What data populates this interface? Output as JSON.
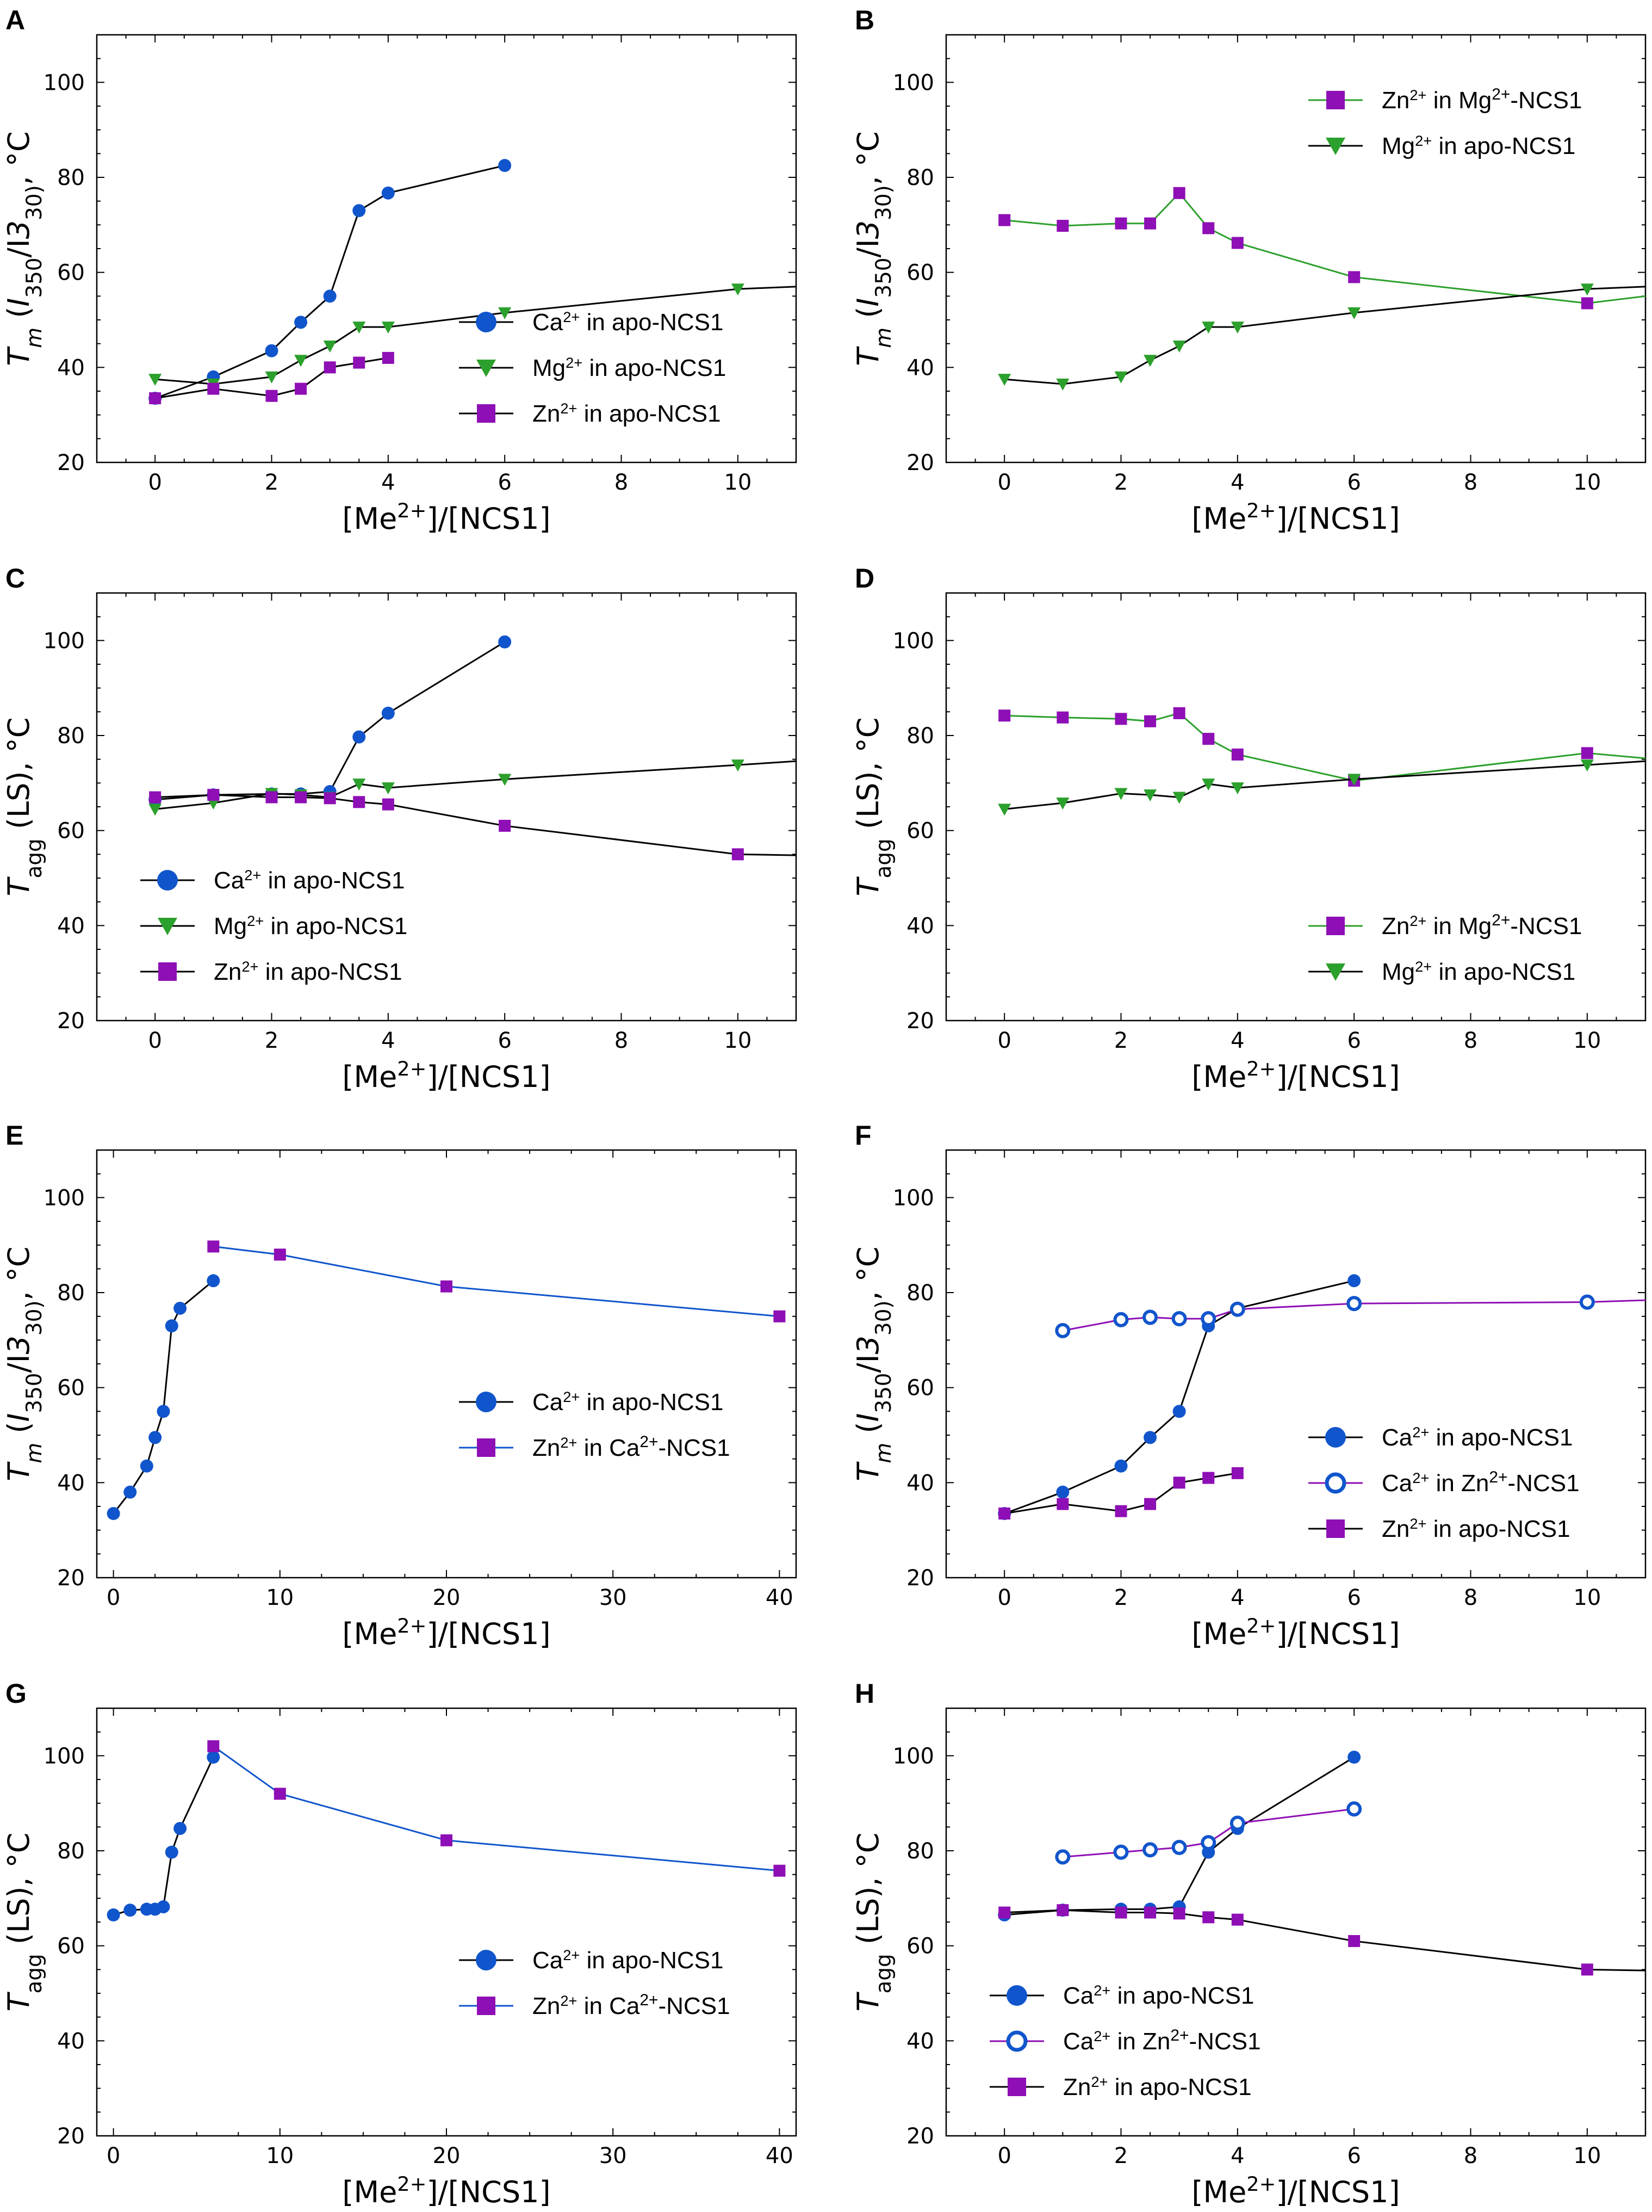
{
  "chart_data": [
    {
      "panel": "A",
      "type": "line",
      "xlabel": "[Me2+]/[NCS1]",
      "ylabel": "Tm (I350/I330), °C",
      "ylabel_kind": "tm",
      "xlim": [
        -1,
        11
      ],
      "ylim": [
        20,
        110
      ],
      "xticks": [
        0,
        2,
        4,
        6,
        8,
        10
      ],
      "yticks": [
        20,
        40,
        60,
        80,
        100
      ],
      "legend_position": "lower-right",
      "series": [
        {
          "ion": "Ca",
          "state": "in apo-NCS1",
          "marker": "circle",
          "markerColor": "#1155cc",
          "lineColor": "#000000",
          "x": [
            0,
            1,
            2,
            2.5,
            3,
            3.5,
            4,
            6
          ],
          "y": [
            33.5,
            38,
            43.5,
            49.5,
            55,
            73,
            76.7,
            82.5
          ]
        },
        {
          "ion": "Mg",
          "state": "in apo-NCS1",
          "marker": "triangle",
          "markerColor": "#2ca02c",
          "lineColor": "#000000",
          "x": [
            0,
            1,
            2,
            2.5,
            3,
            3.5,
            4,
            6,
            10,
            11
          ],
          "y": [
            37.5,
            36.5,
            38,
            41.5,
            44.5,
            48.5,
            48.5,
            51.5,
            56.5,
            57
          ],
          "marker_points": [
            0,
            1,
            2,
            2.5,
            3,
            3.5,
            4,
            6,
            10
          ]
        },
        {
          "ion": "Zn",
          "state": "in apo-NCS1",
          "marker": "square",
          "markerColor": "#8e0fb5",
          "lineColor": "#000000",
          "x": [
            0,
            1,
            2,
            2.5,
            3,
            3.5,
            4
          ],
          "y": [
            33.5,
            35.5,
            34,
            35.5,
            40,
            41,
            42
          ]
        }
      ]
    },
    {
      "panel": "B",
      "type": "line",
      "xlabel": "[Me2+]/[NCS1]",
      "ylabel": "Tm (I350/I330), °C",
      "ylabel_kind": "tm",
      "xlim": [
        -1,
        11
      ],
      "ylim": [
        20,
        110
      ],
      "xticks": [
        0,
        2,
        4,
        6,
        8,
        10
      ],
      "yticks": [
        20,
        40,
        60,
        80,
        100
      ],
      "legend_position": "upper-right",
      "series": [
        {
          "ion": "Zn",
          "state": "in Mg2+-NCS1",
          "marker": "square",
          "markerColor": "#8e0fb5",
          "lineColor": "#2ca02c",
          "x": [
            0,
            1,
            2,
            2.5,
            3,
            3.5,
            4,
            6,
            10,
            11
          ],
          "y": [
            71,
            69.8,
            70.3,
            70.3,
            76.7,
            69.3,
            66.2,
            59,
            53.5,
            55
          ],
          "marker_points": [
            0,
            1,
            2,
            2.5,
            3,
            3.5,
            4,
            6,
            10
          ]
        },
        {
          "ion": "Mg",
          "state": "in apo-NCS1",
          "marker": "triangle",
          "markerColor": "#2ca02c",
          "lineColor": "#000000",
          "x": [
            0,
            1,
            2,
            2.5,
            3,
            3.5,
            4,
            6,
            10,
            11
          ],
          "y": [
            37.5,
            36.5,
            38,
            41.5,
            44.5,
            48.5,
            48.5,
            51.5,
            56.5,
            57
          ],
          "marker_points": [
            0,
            1,
            2,
            2.5,
            3,
            3.5,
            4,
            6,
            10
          ]
        }
      ]
    },
    {
      "panel": "C",
      "type": "line",
      "xlabel": "[Me2+]/[NCS1]",
      "ylabel": "Tagg (LS), °C",
      "ylabel_kind": "tagg",
      "xlim": [
        -1,
        11
      ],
      "ylim": [
        20,
        110
      ],
      "xticks": [
        0,
        2,
        4,
        6,
        8,
        10
      ],
      "yticks": [
        20,
        40,
        60,
        80,
        100
      ],
      "legend_position": "lower-left",
      "series": [
        {
          "ion": "Ca",
          "state": "in apo-NCS1",
          "marker": "circle",
          "markerColor": "#1155cc",
          "lineColor": "#000000",
          "x": [
            0,
            1,
            2,
            2.5,
            3,
            3.5,
            4,
            6
          ],
          "y": [
            66.5,
            67.5,
            67.7,
            67.7,
            68.2,
            79.7,
            84.7,
            99.7
          ]
        },
        {
          "ion": "Mg",
          "state": "in apo-NCS1",
          "marker": "triangle",
          "markerColor": "#2ca02c",
          "lineColor": "#000000",
          "x": [
            0,
            1,
            2,
            2.5,
            3,
            3.5,
            4,
            6,
            10,
            11
          ],
          "y": [
            64.5,
            65.8,
            67.8,
            67.5,
            67,
            69.8,
            69,
            70.8,
            73.8,
            74.6
          ],
          "marker_points": [
            0,
            1,
            2,
            2.5,
            3,
            3.5,
            4,
            6,
            10
          ]
        },
        {
          "ion": "Zn",
          "state": "in apo-NCS1",
          "marker": "square",
          "markerColor": "#8e0fb5",
          "lineColor": "#000000",
          "x": [
            0,
            1,
            2,
            2.5,
            3,
            3.5,
            4,
            6,
            10,
            11
          ],
          "y": [
            67,
            67.5,
            67,
            67,
            66.8,
            66,
            65.5,
            61,
            55,
            54.8
          ],
          "marker_points": [
            0,
            1,
            2,
            2.5,
            3,
            3.5,
            4,
            6,
            10
          ]
        }
      ]
    },
    {
      "panel": "D",
      "type": "line",
      "xlabel": "[Me2+]/[NCS1]",
      "ylabel": "Tagg (LS), °C",
      "ylabel_kind": "tagg",
      "xlim": [
        -1,
        11
      ],
      "ylim": [
        20,
        110
      ],
      "xticks": [
        0,
        2,
        4,
        6,
        8,
        10
      ],
      "yticks": [
        20,
        40,
        60,
        80,
        100
      ],
      "legend_position": "lower-right",
      "series": [
        {
          "ion": "Zn",
          "state": "in Mg2+-NCS1",
          "marker": "square",
          "markerColor": "#8e0fb5",
          "lineColor": "#2ca02c",
          "x": [
            0,
            1,
            2,
            2.5,
            3,
            3.5,
            4,
            6,
            10,
            11
          ],
          "y": [
            84.2,
            83.8,
            83.5,
            83,
            84.7,
            79.3,
            76,
            70.5,
            76.3,
            75.2
          ],
          "marker_points": [
            0,
            1,
            2,
            2.5,
            3,
            3.5,
            4,
            6,
            10
          ]
        },
        {
          "ion": "Mg",
          "state": "in apo-NCS1",
          "marker": "triangle",
          "markerColor": "#2ca02c",
          "lineColor": "#000000",
          "x": [
            0,
            1,
            2,
            2.5,
            3,
            3.5,
            4,
            6,
            10,
            11
          ],
          "y": [
            64.5,
            65.8,
            67.8,
            67.5,
            67,
            69.8,
            69,
            70.8,
            73.8,
            74.6
          ],
          "marker_points": [
            0,
            1,
            2,
            2.5,
            3,
            3.5,
            4,
            6,
            10
          ]
        }
      ]
    },
    {
      "panel": "E",
      "type": "line",
      "xlabel": "[Me2+]/[NCS1]",
      "ylabel": "Tm (I350/I330), °C",
      "ylabel_kind": "tm",
      "xlim": [
        -1,
        41
      ],
      "ylim": [
        20,
        110
      ],
      "xticks": [
        0,
        10,
        20,
        30,
        40
      ],
      "yticks": [
        20,
        40,
        60,
        80,
        100
      ],
      "legend_position": "center-right",
      "series": [
        {
          "ion": "Ca",
          "state": "in apo-NCS1",
          "marker": "circle",
          "markerColor": "#1155cc",
          "lineColor": "#000000",
          "x": [
            0,
            1,
            2,
            2.5,
            3,
            3.5,
            4,
            6
          ],
          "y": [
            33.5,
            38,
            43.5,
            49.5,
            55,
            73,
            76.7,
            82.5
          ]
        },
        {
          "ion": "Zn",
          "state": "in Ca2+-NCS1",
          "marker": "square",
          "markerColor": "#8e0fb5",
          "lineColor": "#1155cc",
          "x": [
            6,
            10,
            20,
            40
          ],
          "y": [
            89.7,
            88,
            81.3,
            75
          ]
        }
      ]
    },
    {
      "panel": "F",
      "type": "line",
      "xlabel": "[Me2+]/[NCS1]",
      "ylabel": "Tm (I350/I330), °C",
      "ylabel_kind": "tm",
      "xlim": [
        -1,
        11
      ],
      "ylim": [
        20,
        110
      ],
      "xticks": [
        0,
        2,
        4,
        6,
        8,
        10
      ],
      "yticks": [
        20,
        40,
        60,
        80,
        100
      ],
      "legend_position": "lower-right",
      "series": [
        {
          "ion": "Ca",
          "state": "in apo-NCS1",
          "marker": "circle",
          "markerColor": "#1155cc",
          "lineColor": "#000000",
          "x": [
            0,
            1,
            2,
            2.5,
            3,
            3.5,
            4,
            6
          ],
          "y": [
            33.5,
            38,
            43.5,
            49.5,
            55,
            73,
            76.7,
            82.5
          ]
        },
        {
          "ion": "Ca",
          "state": "in Zn2+-NCS1",
          "marker": "open-circle",
          "markerColor": "#1155cc",
          "lineColor": "#8e0fb5",
          "x": [
            1,
            2,
            2.5,
            3,
            3.5,
            4,
            6,
            10,
            11
          ],
          "y": [
            72,
            74.3,
            74.8,
            74.5,
            74.5,
            76.5,
            77.7,
            78,
            78.4
          ],
          "marker_points": [
            1,
            2,
            2.5,
            3,
            3.5,
            4,
            6,
            10
          ]
        },
        {
          "ion": "Zn",
          "state": "in apo-NCS1",
          "marker": "square",
          "markerColor": "#8e0fb5",
          "lineColor": "#000000",
          "x": [
            0,
            1,
            2,
            2.5,
            3,
            3.5,
            4
          ],
          "y": [
            33.5,
            35.5,
            34,
            35.5,
            40,
            41,
            42
          ]
        }
      ]
    },
    {
      "panel": "G",
      "type": "line",
      "xlabel": "[Me2+]/[NCS1]",
      "ylabel": "Tagg (LS), °C",
      "ylabel_kind": "tagg",
      "xlim": [
        -1,
        41
      ],
      "ylim": [
        20,
        110
      ],
      "xticks": [
        0,
        10,
        20,
        30,
        40
      ],
      "yticks": [
        20,
        40,
        60,
        80,
        100
      ],
      "legend_position": "center-right",
      "series": [
        {
          "ion": "Ca",
          "state": "in apo-NCS1",
          "marker": "circle",
          "markerColor": "#1155cc",
          "lineColor": "#000000",
          "x": [
            0,
            1,
            2,
            2.5,
            3,
            3.5,
            4,
            6
          ],
          "y": [
            66.5,
            67.5,
            67.7,
            67.7,
            68.2,
            79.7,
            84.7,
            99.7
          ]
        },
        {
          "ion": "Zn",
          "state": "in Ca2+-NCS1",
          "marker": "square",
          "markerColor": "#8e0fb5",
          "lineColor": "#1155cc",
          "x": [
            6,
            10,
            20,
            40
          ],
          "y": [
            102,
            92,
            82.2,
            75.8
          ]
        }
      ]
    },
    {
      "panel": "H",
      "type": "line",
      "xlabel": "[Me2+]/[NCS1]",
      "ylabel": "Tagg (LS), °C",
      "ylabel_kind": "tagg",
      "xlim": [
        -1,
        11
      ],
      "ylim": [
        20,
        110
      ],
      "xticks": [
        0,
        2,
        4,
        6,
        8,
        10
      ],
      "yticks": [
        20,
        40,
        60,
        80,
        100
      ],
      "legend_position": "lower-left",
      "series": [
        {
          "ion": "Ca",
          "state": "in apo-NCS1",
          "marker": "circle",
          "markerColor": "#1155cc",
          "lineColor": "#000000",
          "x": [
            0,
            1,
            2,
            2.5,
            3,
            3.5,
            4,
            6
          ],
          "y": [
            66.5,
            67.5,
            67.7,
            67.7,
            68.2,
            79.7,
            84.7,
            99.7
          ]
        },
        {
          "ion": "Ca",
          "state": "in Zn2+-NCS1",
          "marker": "open-circle",
          "markerColor": "#1155cc",
          "lineColor": "#8e0fb5",
          "x": [
            1,
            2,
            2.5,
            3,
            3.5,
            4,
            6
          ],
          "y": [
            78.7,
            79.7,
            80.2,
            80.7,
            81.7,
            85.8,
            88.8
          ]
        },
        {
          "ion": "Zn",
          "state": "in apo-NCS1",
          "marker": "square",
          "markerColor": "#8e0fb5",
          "lineColor": "#000000",
          "x": [
            0,
            1,
            2,
            2.5,
            3,
            3.5,
            4,
            6,
            10,
            11
          ],
          "y": [
            67,
            67.5,
            67,
            67,
            66.8,
            66,
            65.5,
            61,
            55,
            54.8
          ],
          "marker_points": [
            0,
            1,
            2,
            2.5,
            3,
            3.5,
            4,
            6,
            10
          ]
        }
      ]
    }
  ]
}
